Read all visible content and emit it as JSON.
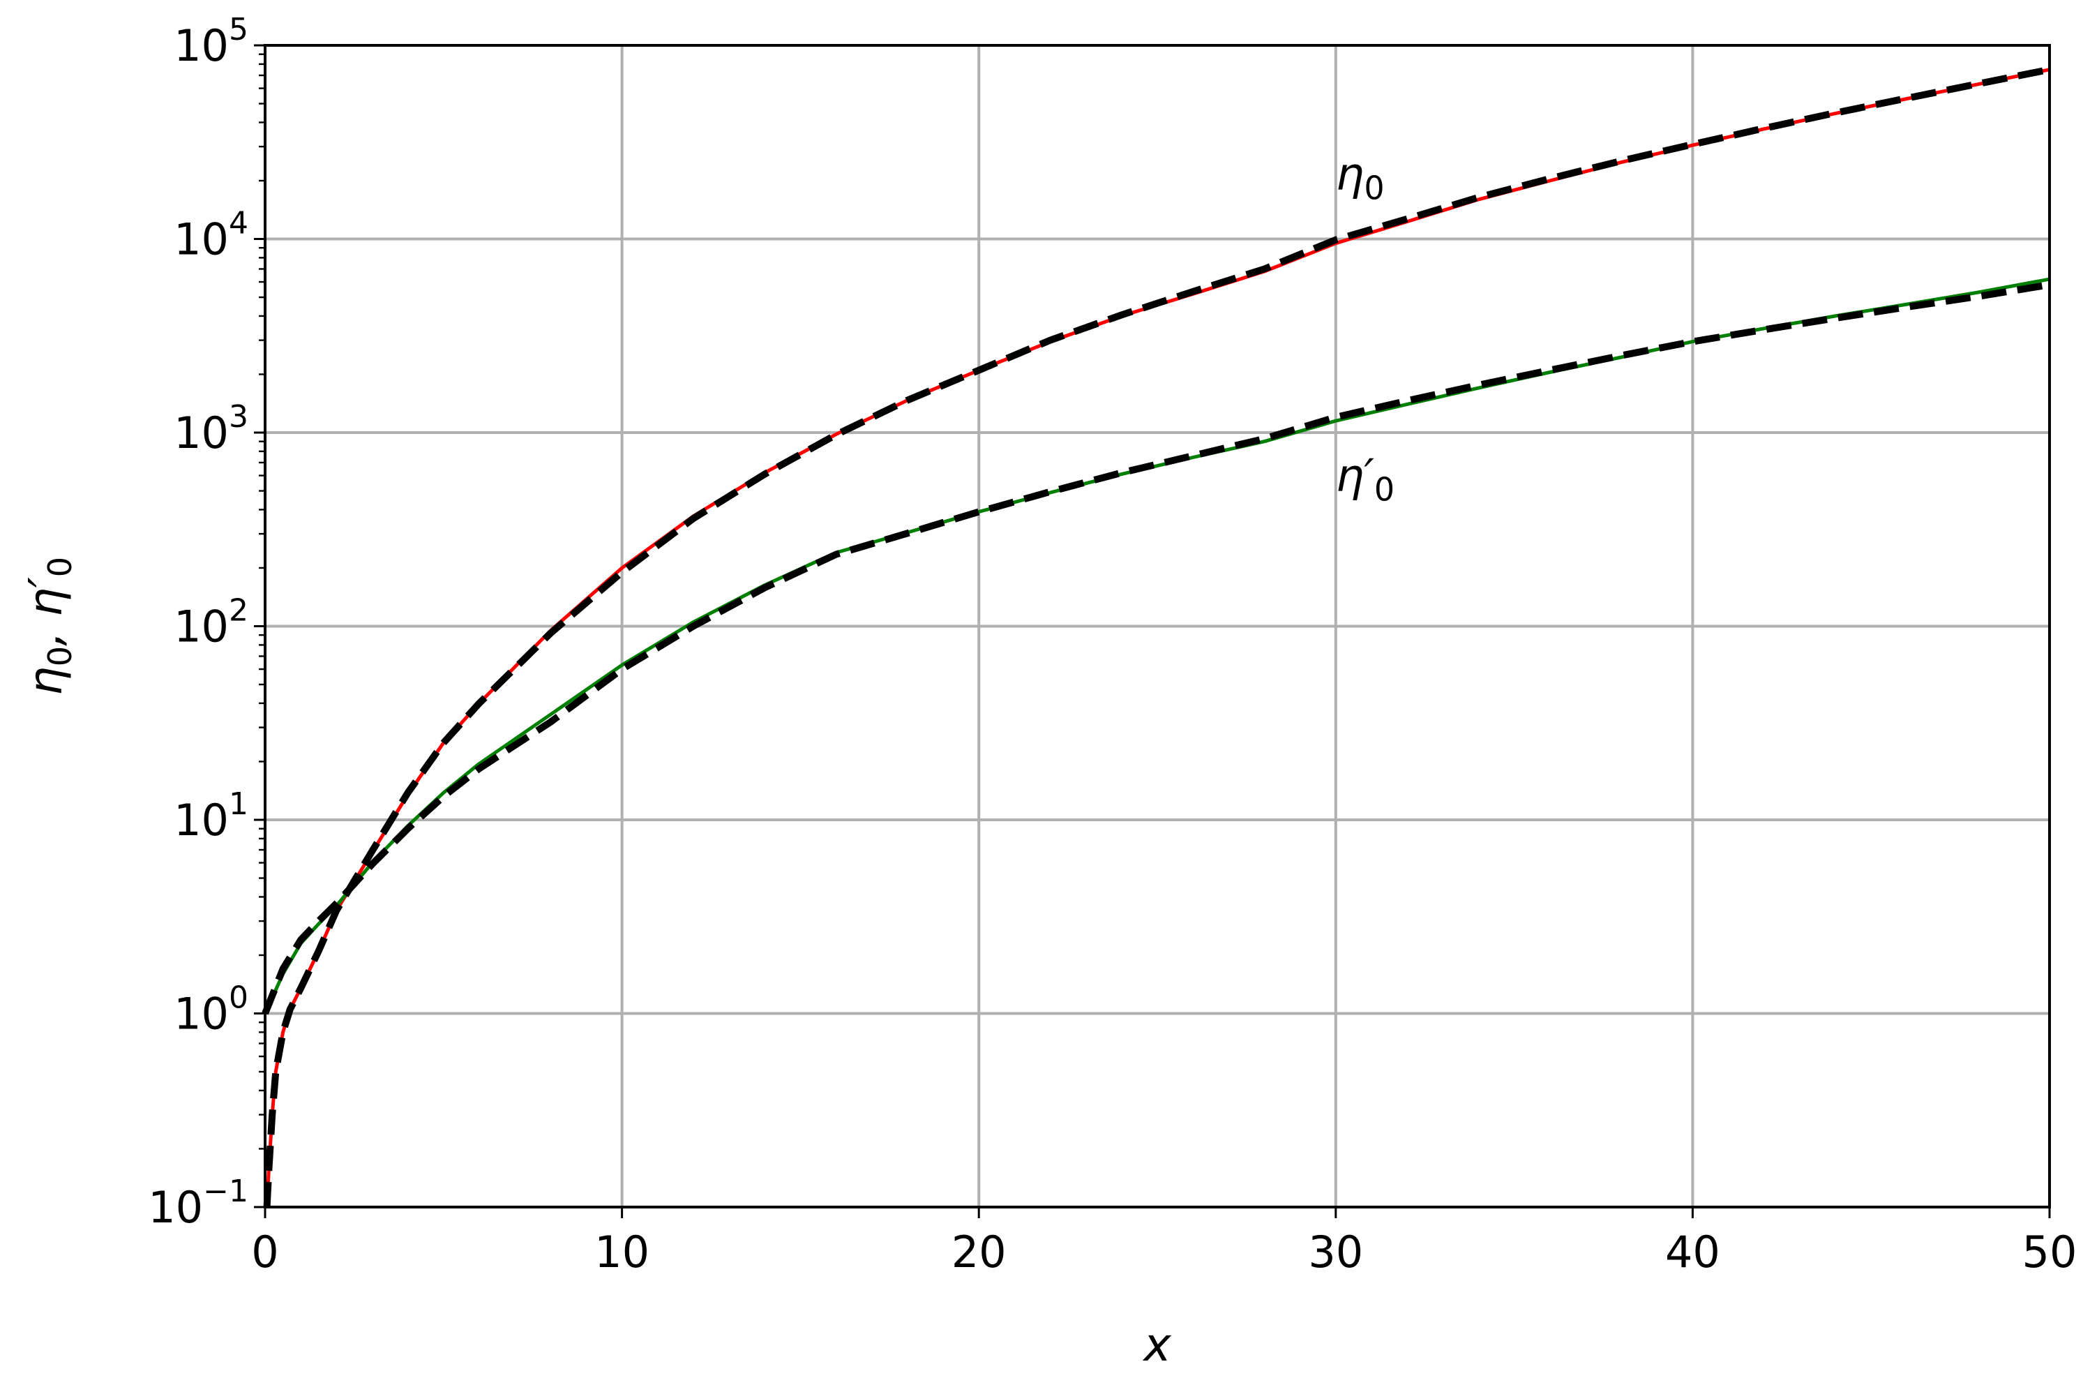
{
  "chart_data": {
    "type": "line",
    "title": "",
    "xlabel": "x",
    "ylabel": {
      "text_a": "η",
      "sub_a": "0",
      "sep": ", ",
      "text_b": "η′",
      "sub_b": "0"
    },
    "xlim": [
      0,
      50
    ],
    "ylim": [
      0.1,
      100000
    ],
    "y_scale": "log",
    "grid": true,
    "x_ticks": [
      {
        "value": 0,
        "label": "0"
      },
      {
        "value": 10,
        "label": "10"
      },
      {
        "value": 20,
        "label": "20"
      },
      {
        "value": 30,
        "label": "30"
      },
      {
        "value": 40,
        "label": "40"
      },
      {
        "value": 50,
        "label": "50"
      }
    ],
    "y_ticks": [
      {
        "value": 0.1,
        "base": "10",
        "exp": "−1"
      },
      {
        "value": 1,
        "base": "10",
        "exp": "0"
      },
      {
        "value": 10,
        "base": "10",
        "exp": "1"
      },
      {
        "value": 100,
        "base": "10",
        "exp": "2"
      },
      {
        "value": 1000,
        "base": "10",
        "exp": "3"
      },
      {
        "value": 10000,
        "base": "10",
        "exp": "4"
      },
      {
        "value": 100000,
        "base": "10",
        "exp": "5"
      }
    ],
    "series": [
      {
        "key": "eta0",
        "color": "#ff0000",
        "style": "solid",
        "x": [
          0.05,
          0.1,
          0.2,
          0.3,
          0.5,
          0.7,
          1,
          1.5,
          2,
          3,
          4,
          5,
          6,
          8,
          10,
          12,
          14,
          16,
          18,
          20,
          22,
          24,
          26,
          28,
          30,
          32,
          34,
          36,
          38,
          40,
          42,
          44,
          46,
          48,
          50
        ],
        "y": [
          0.1,
          0.15,
          0.3,
          0.5,
          0.8,
          1.05,
          1.35,
          2.1,
          3.4,
          6.8,
          13.5,
          25,
          40,
          95,
          200,
          370,
          620,
          980,
          1470,
          2100,
          2950,
          4000,
          5200,
          6800,
          9500,
          12300,
          16000,
          20000,
          24900,
          30500,
          37000,
          44500,
          53000,
          63000,
          75000
        ]
      },
      {
        "key": "eta0_fit",
        "color": "#000000",
        "style": "dashed",
        "x": [
          0.05,
          0.1,
          0.2,
          0.3,
          0.5,
          0.7,
          1,
          1.5,
          2,
          3,
          4,
          5,
          6,
          8,
          10,
          12,
          14,
          16,
          18,
          20,
          22,
          24,
          26,
          28,
          30,
          32,
          34,
          36,
          38,
          40,
          42,
          44,
          46,
          48,
          50
        ],
        "y": [
          0.1,
          0.15,
          0.3,
          0.5,
          0.8,
          1.05,
          1.35,
          2.1,
          3.4,
          6.9,
          13.8,
          25,
          40,
          92,
          190,
          360,
          610,
          975,
          1470,
          2100,
          3000,
          4050,
          5350,
          7000,
          9900,
          12700,
          16400,
          20500,
          25300,
          30800,
          37300,
          44800,
          53300,
          63300,
          75000
        ]
      },
      {
        "key": "eta0prime",
        "color": "#008000",
        "style": "solid",
        "x": [
          0,
          0.5,
          1,
          1.5,
          2,
          3,
          4,
          5,
          6,
          8,
          10,
          12,
          14,
          16,
          18,
          20,
          22,
          24,
          26,
          28,
          30,
          32,
          34,
          36,
          38,
          40,
          42,
          44,
          46,
          48,
          50
        ],
        "y": [
          1.0,
          1.6,
          2.3,
          2.9,
          3.6,
          6.0,
          9.3,
          13.8,
          19.5,
          35,
          63,
          105,
          163,
          240,
          305,
          390,
          490,
          610,
          745,
          900,
          1150,
          1400,
          1700,
          2050,
          2450,
          2950,
          3450,
          4000,
          4600,
          5300,
          6200
        ]
      },
      {
        "key": "eta0prime_fit",
        "color": "#000000",
        "style": "dashed",
        "x": [
          0,
          0.5,
          1,
          1.5,
          2,
          3,
          4,
          5,
          6,
          8,
          10,
          12,
          14,
          16,
          18,
          20,
          22,
          24,
          26,
          28,
          30,
          32,
          34,
          36,
          38,
          40,
          42,
          44,
          46,
          48,
          50
        ],
        "y": [
          1.0,
          1.7,
          2.4,
          3.0,
          3.7,
          5.9,
          9.0,
          13.2,
          18.4,
          32,
          60,
          100,
          158,
          235,
          302,
          390,
          495,
          620,
          760,
          930,
          1200,
          1460,
          1760,
          2100,
          2500,
          2950,
          3400,
          3900,
          4450,
          5050,
          5800
        ]
      }
    ],
    "annotations": [
      {
        "text": "η",
        "sub": "0",
        "x": 30,
        "y": 18000
      },
      {
        "text": "η′",
        "sub": "0",
        "x": 30,
        "y": 500
      }
    ]
  }
}
